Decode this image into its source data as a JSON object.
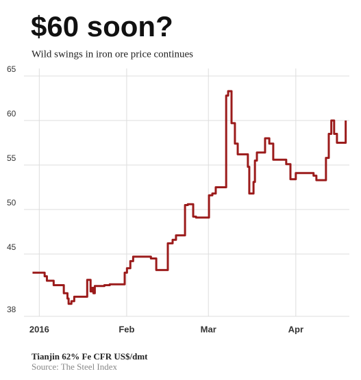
{
  "chart_data": {
    "type": "line",
    "step": true,
    "title": "$60 soon?",
    "subtitle": "Wild swings in iron ore price continues",
    "y_label": "Tianjin 62% Fe CFR US$/dmt",
    "source": "Source: The Steel Index",
    "x": [
      -2.4,
      1.9,
      2.7,
      5.1,
      8.7,
      10,
      10.4,
      11.4,
      12.4,
      17,
      18.2,
      18.7,
      19.2,
      19.7,
      23.1,
      25,
      30.3,
      31.1,
      32.3,
      33.3,
      39.6,
      41.5,
      45.6,
      47.3,
      48.5,
      51.7,
      52.7,
      54.6,
      55.6,
      60.2,
      61.4,
      62.6,
      66.3,
      67,
      68.2,
      69.4,
      70.4,
      74,
      74.5,
      76,
      76.5,
      77.2,
      80.1,
      81.6,
      83,
      87.6,
      89.1,
      91,
      97.3,
      98.3,
      101.7,
      102.7,
      103.6,
      104.6,
      105.6,
      108.7
    ],
    "series": [
      {
        "name": "Iron ore price",
        "color": "#9b1b1b",
        "values": [
          42.9,
          42.5,
          42.0,
          41.5,
          40.6,
          40.0,
          39.4,
          39.7,
          40.2,
          42.1,
          40.8,
          41.2,
          40.6,
          41.4,
          41.5,
          41.6,
          42.9,
          43.4,
          44.2,
          44.7,
          44.5,
          43.2,
          46.2,
          46.6,
          47.1,
          50.5,
          50.6,
          49.2,
          49.1,
          51.6,
          51.8,
          52.5,
          62.8,
          63.3,
          59.7,
          57.4,
          56.2,
          54.8,
          51.8,
          53.1,
          55.5,
          56.4,
          58.0,
          57.4,
          55.6,
          55.1,
          53.4,
          54.1,
          53.8,
          53.3,
          55.8,
          58.5,
          60,
          58.5,
          57.5,
          60
        ]
      }
    ],
    "xlim": [
      -3,
      110
    ],
    "xticks": [
      {
        "value": 0,
        "label": "2016"
      },
      {
        "value": 31,
        "label": "Feb"
      },
      {
        "value": 60,
        "label": "Mar"
      },
      {
        "value": 91,
        "label": "Apr"
      }
    ],
    "ylim": [
      38,
      65
    ],
    "yticks": [
      38,
      45,
      50,
      55,
      60,
      65
    ],
    "grid": true
  }
}
